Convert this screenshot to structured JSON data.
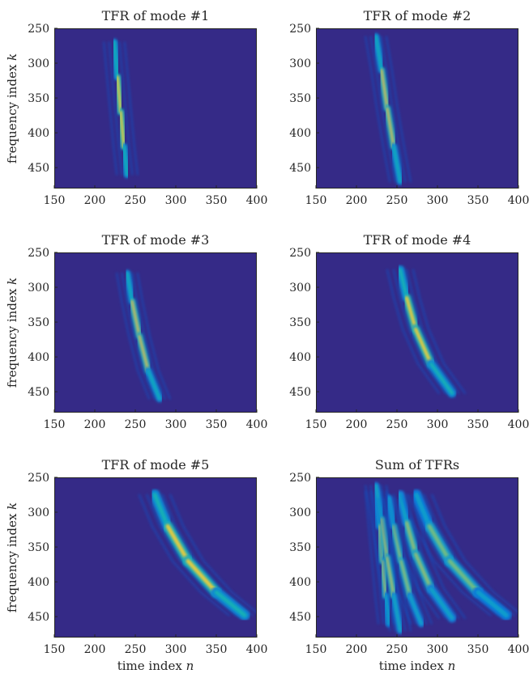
{
  "figure": {
    "background_color": "#ffffff",
    "colormap": "parula",
    "plot_background": "#352a87"
  },
  "chart_data": [
    {
      "type": "heatmap",
      "title": "TFR of mode #1",
      "xlim": [
        150,
        400
      ],
      "ylim": [
        250,
        480
      ],
      "y_reversed": true,
      "xticks": [
        "150",
        "200",
        "250",
        "300",
        "350",
        "400"
      ],
      "yticks": [
        "250",
        "300",
        "350",
        "400",
        "450"
      ],
      "xlabel": "",
      "ylabel": "frequency index k",
      "ridges": [
        {
          "x": [
            224,
            228,
            232,
            236,
            240
          ],
          "y": [
            270,
            320,
            370,
            420,
            460
          ],
          "peak": 1.0,
          "width": 4
        }
      ]
    },
    {
      "type": "heatmap",
      "title": "TFR of mode #2",
      "xlim": [
        150,
        400
      ],
      "ylim": [
        250,
        480
      ],
      "y_reversed": true,
      "xticks": [
        "150",
        "200",
        "250",
        "300",
        "350",
        "400"
      ],
      "yticks": [
        "250",
        "300",
        "350",
        "400",
        "450"
      ],
      "xlabel": "",
      "ylabel": "",
      "ridges": [
        {
          "x": [
            224,
            231,
            238,
            246,
            254
          ],
          "y": [
            262,
            310,
            365,
            420,
            470
          ],
          "peak": 0.95,
          "width": 4
        }
      ]
    },
    {
      "type": "heatmap",
      "title": "TFR of mode #3",
      "xlim": [
        150,
        400
      ],
      "ylim": [
        250,
        480
      ],
      "y_reversed": true,
      "xticks": [
        "150",
        "200",
        "250",
        "300",
        "350",
        "400"
      ],
      "yticks": [
        "250",
        "300",
        "350",
        "400",
        "450"
      ],
      "xlabel": "",
      "ylabel": "frequency index k",
      "ridges": [
        {
          "x": [
            240,
            246,
            255,
            266,
            280
          ],
          "y": [
            280,
            320,
            370,
            420,
            460
          ],
          "peak": 0.95,
          "width": 4
        }
      ]
    },
    {
      "type": "heatmap",
      "title": "TFR of mode #4",
      "xlim": [
        150,
        400
      ],
      "ylim": [
        250,
        480
      ],
      "y_reversed": true,
      "xticks": [
        "150",
        "200",
        "250",
        "300",
        "350",
        "400"
      ],
      "yticks": [
        "250",
        "300",
        "350",
        "400",
        "450"
      ],
      "xlabel": "",
      "ylabel": "",
      "ridges": [
        {
          "x": [
            254,
            262,
            273,
            292,
            318
          ],
          "y": [
            275,
            315,
            360,
            410,
            452
          ],
          "peak": 1.0,
          "width": 5
        }
      ]
    },
    {
      "type": "heatmap",
      "title": "TFR of mode #5",
      "xlim": [
        150,
        400
      ],
      "ylim": [
        250,
        480
      ],
      "y_reversed": true,
      "xticks": [
        "150",
        "200",
        "250",
        "300",
        "350",
        "400"
      ],
      "yticks": [
        "250",
        "300",
        "350",
        "400",
        "450"
      ],
      "xlabel": "time index n",
      "ylabel": "frequency index k",
      "ridges": [
        {
          "x": [
            274,
            290,
            315,
            350,
            385
          ],
          "y": [
            275,
            320,
            370,
            415,
            448
          ],
          "peak": 1.0,
          "width": 6
        }
      ]
    },
    {
      "type": "heatmap",
      "title": "Sum of TFRs",
      "xlim": [
        150,
        400
      ],
      "ylim": [
        250,
        480
      ],
      "y_reversed": true,
      "xticks": [
        "150",
        "200",
        "250",
        "300",
        "350",
        "400"
      ],
      "yticks": [
        "250",
        "300",
        "350",
        "400",
        "450"
      ],
      "xlabel": "time index n",
      "ylabel": "",
      "ridges": [
        {
          "x": [
            224,
            228,
            232,
            236,
            240
          ],
          "y": [
            270,
            320,
            370,
            420,
            460
          ],
          "peak": 0.9,
          "width": 4
        },
        {
          "x": [
            224,
            231,
            238,
            246,
            254
          ],
          "y": [
            262,
            310,
            365,
            420,
            470
          ],
          "peak": 0.9,
          "width": 4
        },
        {
          "x": [
            240,
            246,
            255,
            266,
            280
          ],
          "y": [
            280,
            320,
            370,
            420,
            460
          ],
          "peak": 0.85,
          "width": 4
        },
        {
          "x": [
            254,
            262,
            273,
            292,
            318
          ],
          "y": [
            275,
            315,
            360,
            410,
            452
          ],
          "peak": 0.85,
          "width": 5
        },
        {
          "x": [
            274,
            290,
            315,
            350,
            385
          ],
          "y": [
            275,
            320,
            370,
            415,
            448
          ],
          "peak": 0.8,
          "width": 6
        }
      ]
    }
  ]
}
